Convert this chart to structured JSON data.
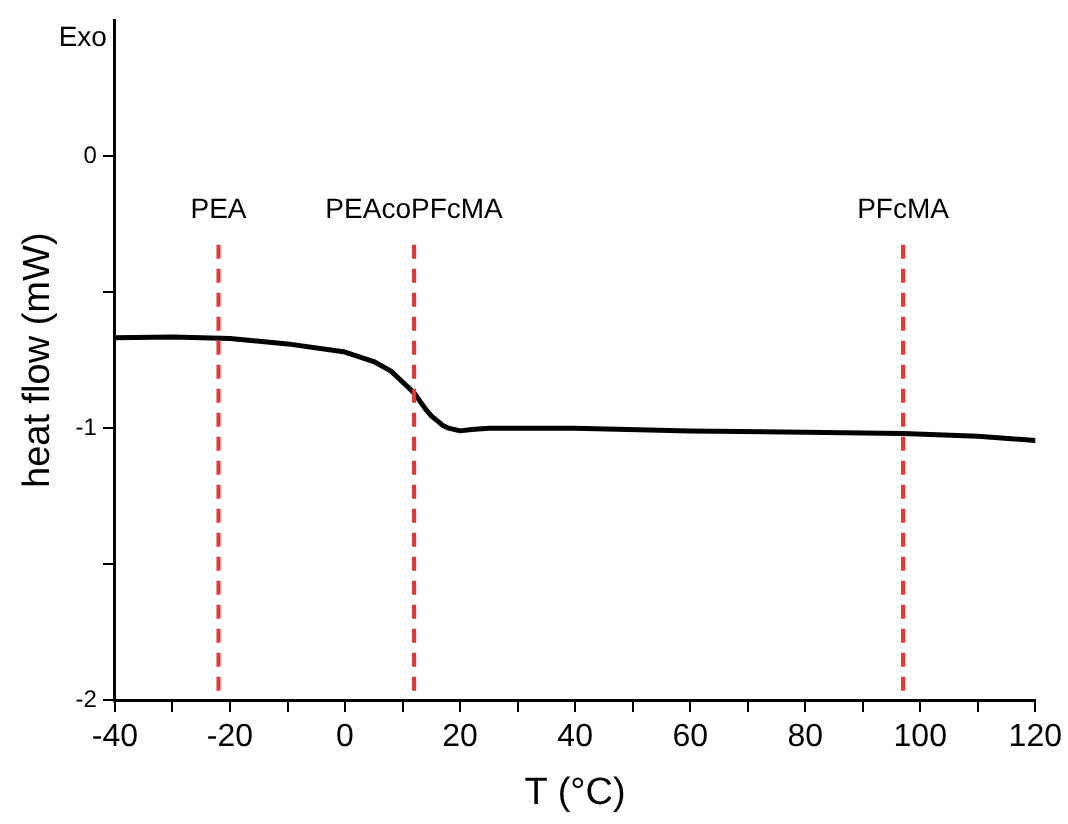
{
  "chart_data": {
    "type": "line",
    "xlabel": "T (°C)",
    "ylabel": "heat flow (mW)",
    "annotations": [
      "Exo"
    ],
    "series": [
      {
        "color": "#000000",
        "x": [
          -40,
          -30,
          -20,
          -10,
          0,
          5,
          8,
          10,
          12,
          14,
          15,
          17,
          18,
          20,
          22,
          25,
          30,
          40,
          60,
          80,
          97,
          110,
          120
        ],
        "values": [
          -0.667,
          -0.665,
          -0.67,
          -0.69,
          -0.72,
          -0.755,
          -0.79,
          -0.83,
          -0.87,
          -0.93,
          -0.955,
          -0.99,
          -1.0,
          -1.01,
          -1.005,
          -1.0,
          -1.0,
          -1.0,
          -1.01,
          -1.015,
          -1.02,
          -1.03,
          -1.045
        ]
      }
    ],
    "xlim": [
      -40,
      120
    ],
    "xticks": [
      -40,
      {
        "value": -30,
        "label": null
      },
      -20,
      {
        "value": -10,
        "label": null
      },
      0,
      {
        "value": 10,
        "label": null
      },
      20,
      {
        "value": 30,
        "label": null
      },
      40,
      {
        "value": 50,
        "label": null
      },
      60,
      {
        "value": 70,
        "label": null
      },
      80,
      {
        "value": 90,
        "label": null
      },
      100,
      {
        "value": 110,
        "label": null
      },
      120
    ],
    "ylim": [
      -2,
      0.5
    ],
    "yticks": [
      -2,
      {
        "value": -1.5,
        "label": null
      },
      -1,
      {
        "value": -0.5,
        "label": null
      },
      0
    ],
    "ref_lines": [
      {
        "axis": "x",
        "value": -22,
        "label": "PEA",
        "color": "#ee3333",
        "line_style": "dashed"
      },
      {
        "axis": "x",
        "value": 12,
        "label": "PEAcoPFcMA",
        "color": "#ee3333",
        "line_style": "dashed"
      },
      {
        "axis": "x",
        "value": 97,
        "label": "PFcMA",
        "color": "#ee3333",
        "line_style": "dashed"
      }
    ],
    "grid": false,
    "legend": false,
    "marker": "none",
    "line_style": "solid"
  }
}
